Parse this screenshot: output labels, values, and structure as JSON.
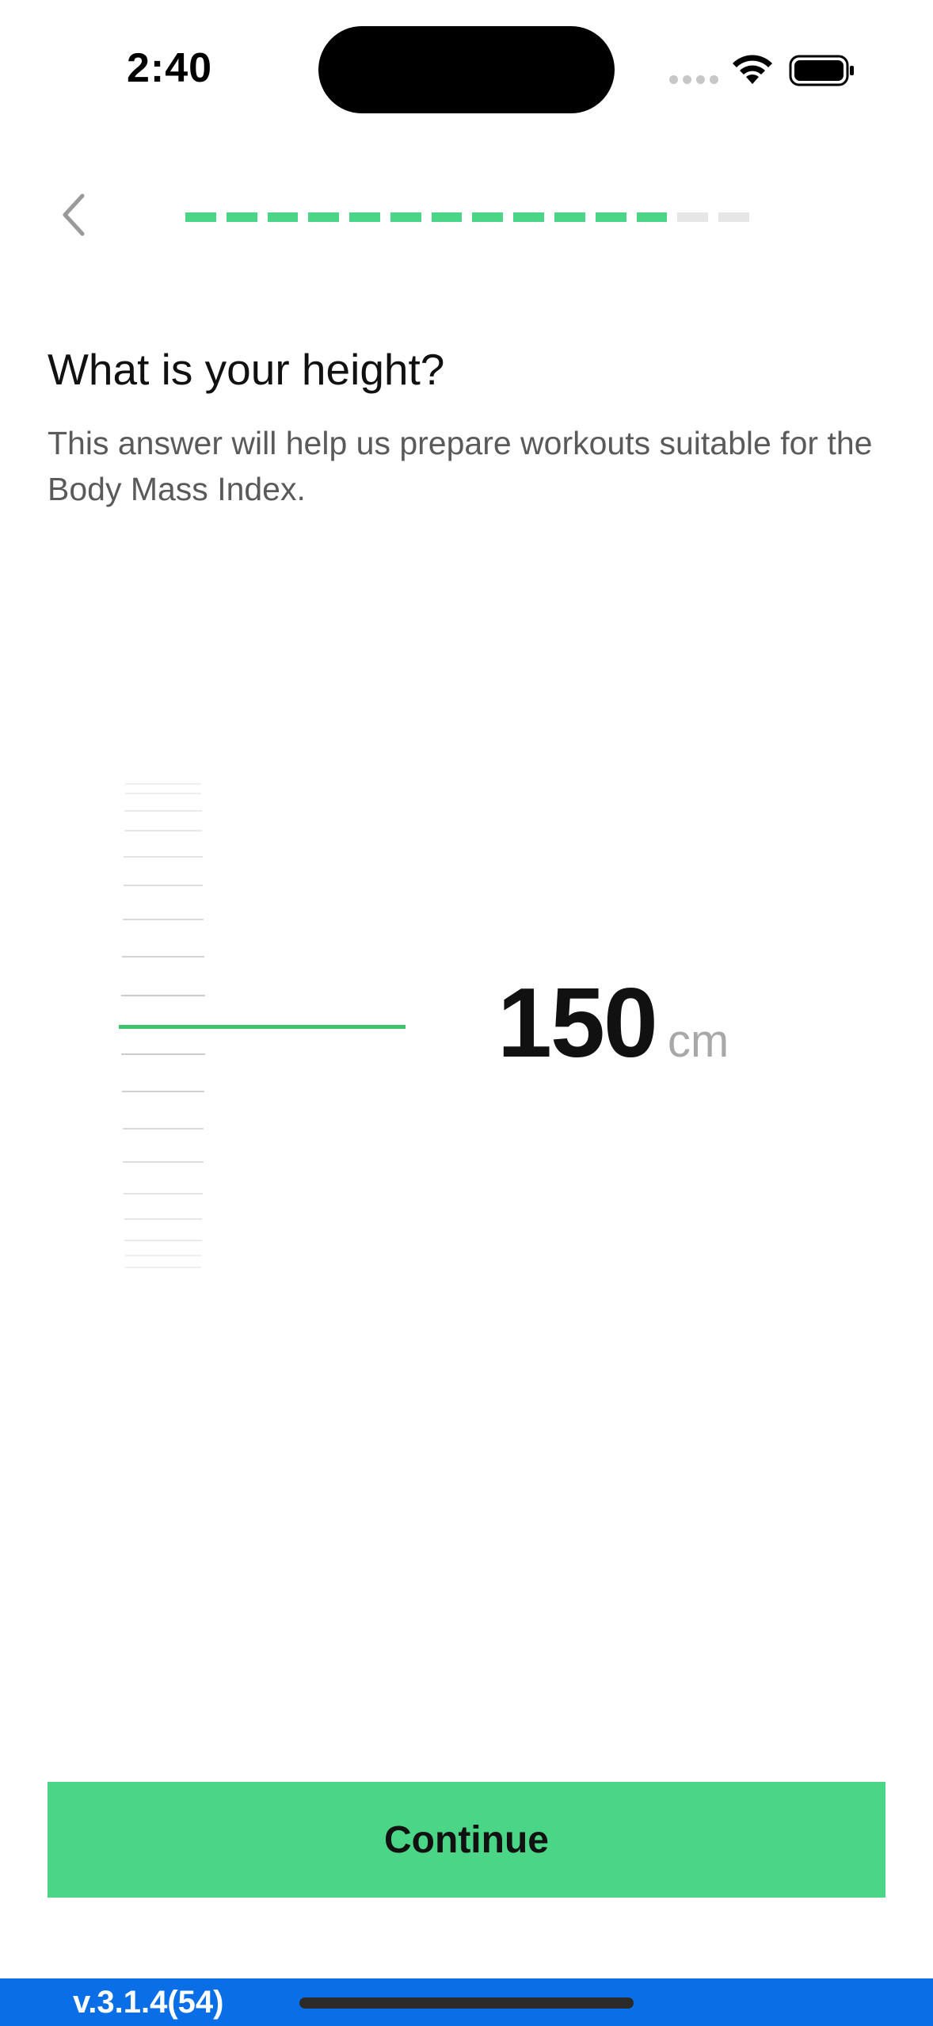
{
  "status": {
    "time": "2:40"
  },
  "progress": {
    "total_steps": 14,
    "completed_steps": 12
  },
  "question": {
    "title": "What is your height?",
    "subtitle": "This answer will help us prepare workouts suitable for the Body Mass Index."
  },
  "height": {
    "value": "150",
    "unit": "cm"
  },
  "actions": {
    "continue_label": "Continue"
  },
  "footer": {
    "version": "v.3.1.4(54)"
  },
  "colors": {
    "accent": "#4bd587",
    "ruler_selected": "#3ec46d",
    "footer_bar": "#0a6ee6"
  }
}
